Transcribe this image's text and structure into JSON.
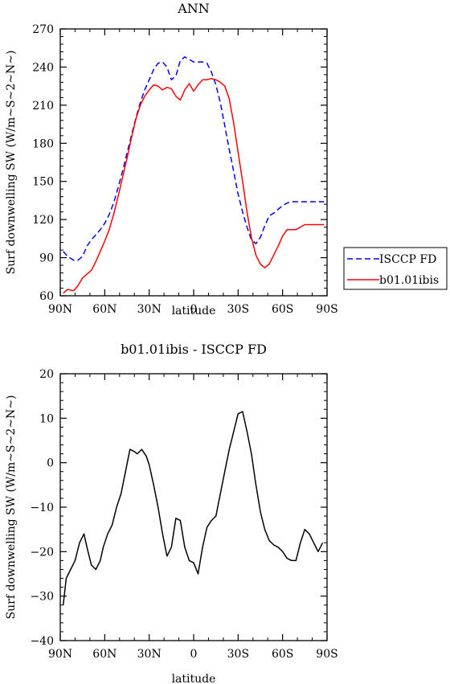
{
  "chart_data": [
    {
      "type": "line",
      "title": "ANN",
      "xlabel": "latitude",
      "ylabel": "Surf downwelling SW (W/m~S~2~N~)",
      "xlim": [
        -90,
        90
      ],
      "ylim": [
        60,
        270
      ],
      "x_ticks": [
        {
          "value": -90,
          "label": "90N"
        },
        {
          "value": -60,
          "label": "60N"
        },
        {
          "value": -30,
          "label": "30N"
        },
        {
          "value": 0,
          "label": "0"
        },
        {
          "value": 30,
          "label": "30S"
        },
        {
          "value": 60,
          "label": "60S"
        },
        {
          "value": 90,
          "label": "90S"
        }
      ],
      "y_ticks": [
        60,
        90,
        120,
        150,
        180,
        210,
        240,
        270
      ],
      "legend": {
        "placement": "right-outside",
        "entries": [
          {
            "label": "ISCCP FD",
            "color": "#0000ff",
            "dash": "dashed"
          },
          {
            "label": "b01.01ibis",
            "color": "#ff0000",
            "dash": "solid"
          }
        ]
      },
      "x": [
        -88,
        -85,
        -81,
        -78,
        -75,
        -72,
        -69,
        -66,
        -63,
        -60,
        -57,
        -54,
        -51,
        -48,
        -45,
        -42,
        -39,
        -36,
        -33,
        -30,
        -27,
        -24,
        -21,
        -18,
        -15,
        -12,
        -9,
        -6,
        -3,
        0,
        3,
        6,
        9,
        12,
        15,
        18,
        21,
        24,
        27,
        30,
        33,
        36,
        39,
        42,
        45,
        48,
        51,
        54,
        57,
        60,
        63,
        66,
        69,
        72,
        75,
        78,
        81,
        84,
        87,
        88
      ],
      "series": [
        {
          "name": "ISCCP FD",
          "color": "#0000ff",
          "dash": "dashed",
          "values": [
            95,
            91,
            88,
            88,
            91,
            99,
            104,
            108,
            112,
            117,
            124,
            133,
            145,
            158,
            172,
            186,
            200,
            212,
            222,
            230,
            238,
            243,
            244,
            240,
            230,
            233,
            245,
            248,
            246,
            244,
            244,
            244,
            243,
            236,
            226,
            212,
            194,
            175,
            158,
            140,
            126,
            114,
            104,
            101,
            106,
            115,
            123,
            125,
            128,
            131,
            133,
            134,
            134,
            134,
            134,
            134,
            134,
            134,
            134,
            134
          ]
        },
        {
          "name": "b01.01ibis",
          "color": "#ff0000",
          "dash": "solid",
          "values": [
            62,
            65,
            64,
            68,
            74,
            77,
            80,
            87,
            95,
            103,
            112,
            124,
            138,
            153,
            168,
            184,
            199,
            210,
            217,
            222,
            226,
            225,
            222,
            224,
            223,
            217,
            214,
            222,
            227,
            221,
            226,
            230,
            230,
            231,
            230,
            228,
            225,
            215,
            196,
            173,
            150,
            126,
            106,
            92,
            85,
            82,
            85,
            92,
            99,
            107,
            112,
            112,
            112,
            114,
            116,
            116,
            116,
            116,
            116,
            116
          ]
        }
      ]
    },
    {
      "type": "line",
      "title": "b01.01ibis - ISCCP FD",
      "xlabel": "latitude",
      "ylabel": "Surf downwelling SW (W/m~S~2~N~)",
      "xlim": [
        -90,
        90
      ],
      "ylim": [
        -40,
        20
      ],
      "x_ticks": [
        {
          "value": -90,
          "label": "90N"
        },
        {
          "value": -60,
          "label": "60N"
        },
        {
          "value": -30,
          "label": "30N"
        },
        {
          "value": 0,
          "label": "0"
        },
        {
          "value": 30,
          "label": "30S"
        },
        {
          "value": 60,
          "label": "60S"
        },
        {
          "value": 90,
          "label": "90S"
        }
      ],
      "y_ticks": [
        -40,
        -30,
        -20,
        -10,
        0,
        10,
        20
      ],
      "x": [
        -88,
        -86,
        -83,
        -80,
        -77,
        -74,
        -72,
        -69,
        -66,
        -63,
        -61,
        -58,
        -55,
        -52,
        -49,
        -46,
        -43,
        -40,
        -38,
        -35,
        -32,
        -30,
        -27,
        -24,
        -21,
        -18,
        -15,
        -12,
        -9,
        -6,
        -3,
        0,
        3,
        6,
        9,
        12,
        15,
        18,
        21,
        24,
        27,
        30,
        33,
        36,
        39,
        42,
        45,
        48,
        51,
        54,
        57,
        60,
        63,
        66,
        69,
        72,
        75,
        78,
        81,
        84,
        87
      ],
      "series": [
        {
          "name": "",
          "color": "#000000",
          "dash": "solid",
          "values": [
            -32,
            -26,
            -24,
            -22,
            -18,
            -16,
            -19,
            -23,
            -24,
            -22,
            -19,
            -16,
            -14,
            -10,
            -7,
            -2,
            3,
            2.5,
            2,
            3,
            1.5,
            -0.5,
            -5,
            -10,
            -16,
            -21,
            -19,
            -12.5,
            -13,
            -19,
            -22,
            -22.5,
            -25,
            -19,
            -14.5,
            -13,
            -12,
            -7,
            -2,
            3,
            7,
            11,
            11.5,
            7,
            2,
            -5,
            -11,
            -15,
            -17.5,
            -18.5,
            -19,
            -20,
            -21.5,
            -22,
            -22,
            -18,
            -15,
            -16,
            -18,
            -20,
            -18
          ]
        }
      ]
    }
  ]
}
